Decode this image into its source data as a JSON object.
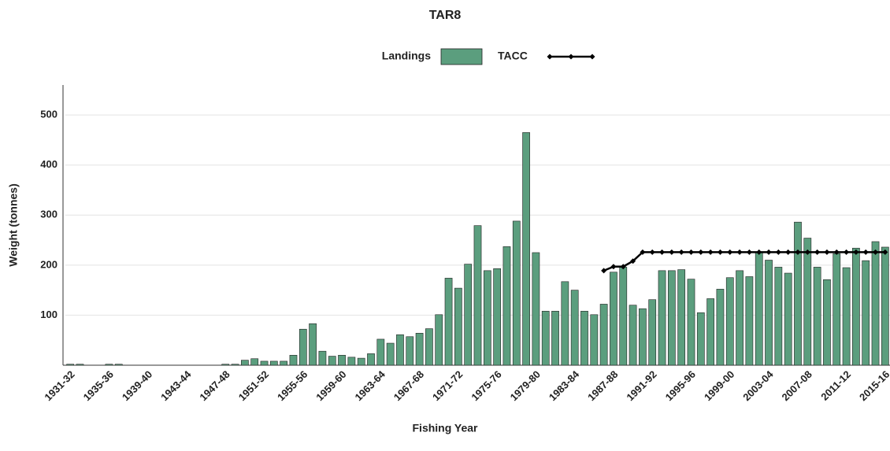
{
  "chart_data": {
    "type": "bar",
    "title": "TAR8",
    "x_label": "Fishing Year",
    "y_label": "Weight (tonnes)",
    "categories": [
      "1931-32",
      null,
      null,
      null,
      "1935-36",
      null,
      null,
      null,
      "1939-40",
      null,
      null,
      null,
      "1943-44",
      null,
      null,
      null,
      "1947-48",
      null,
      null,
      null,
      "1951-52",
      null,
      null,
      null,
      "1955-56",
      null,
      null,
      null,
      "1959-60",
      null,
      null,
      null,
      "1963-64",
      null,
      null,
      null,
      "1967-68",
      null,
      null,
      null,
      "1971-72",
      null,
      null,
      null,
      "1975-76",
      null,
      null,
      null,
      "1979-80",
      null,
      null,
      null,
      "1983-84",
      null,
      null,
      null,
      "1987-88",
      null,
      null,
      null,
      "1991-92",
      null,
      null,
      null,
      "1995-96",
      null,
      null,
      null,
      "1999-00",
      null,
      null,
      null,
      "2003-04",
      null,
      null,
      null,
      "2007-08",
      null,
      null,
      null,
      "2011-12",
      null,
      null,
      null,
      "2015-16"
    ],
    "series": [
      {
        "name": "Landings",
        "type": "bar",
        "color": "#5b9e7e",
        "values": [
          2,
          2,
          0,
          0,
          2,
          2,
          0,
          0,
          0,
          0,
          0,
          0,
          0,
          0,
          0,
          0,
          2,
          2,
          10,
          13,
          8,
          8,
          8,
          20,
          72,
          83,
          28,
          18,
          20,
          16,
          14,
          23,
          52,
          44,
          61,
          57,
          64,
          73,
          101,
          174,
          154,
          202,
          279,
          189,
          193,
          237,
          288,
          465,
          225,
          108,
          108,
          167,
          150,
          108,
          101,
          122,
          186,
          196,
          120,
          113,
          131,
          189,
          189,
          191,
          172,
          105,
          133,
          152,
          175,
          189,
          177,
          226,
          210,
          196,
          184,
          286,
          254,
          196,
          171,
          223,
          195,
          234,
          209,
          247,
          236
        ]
      },
      {
        "name": "TACC",
        "type": "line",
        "color": "#000000",
        "values": [
          null,
          null,
          null,
          null,
          null,
          null,
          null,
          null,
          null,
          null,
          null,
          null,
          null,
          null,
          null,
          null,
          null,
          null,
          null,
          null,
          null,
          null,
          null,
          null,
          null,
          null,
          null,
          null,
          null,
          null,
          null,
          null,
          null,
          null,
          null,
          null,
          null,
          null,
          null,
          null,
          null,
          null,
          null,
          null,
          null,
          null,
          null,
          null,
          null,
          null,
          null,
          null,
          null,
          null,
          null,
          189,
          197,
          197,
          208,
          226,
          226,
          226,
          226,
          226,
          226,
          226,
          226,
          226,
          226,
          226,
          226,
          226,
          226,
          226,
          226,
          226,
          226,
          226,
          226,
          226,
          226,
          226,
          226,
          226,
          226
        ]
      }
    ],
    "ylim": [
      0,
      560
    ],
    "yticks": [
      100,
      200,
      300,
      400,
      500
    ],
    "grid": true
  }
}
